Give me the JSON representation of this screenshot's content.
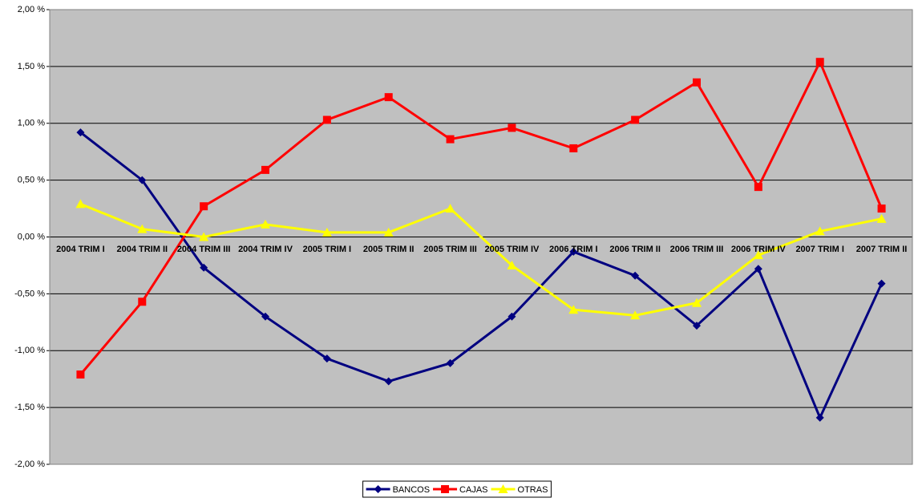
{
  "chart_data": {
    "type": "line",
    "categories": [
      "2004 TRIM I",
      "2004 TRIM II",
      "2004 TRIM III",
      "2004 TRIM IV",
      "2005 TRIM I",
      "2005 TRIM II",
      "2005 TRIM III",
      "2005 TRIM IV",
      "2006 TRIM I",
      "2006 TRIM II",
      "2006 TRIM III",
      "2006 TRIM IV",
      "2007 TRIM I",
      "2007 TRIM II"
    ],
    "series": [
      {
        "name": "BANCOS",
        "color": "#000080",
        "marker": "diamond",
        "values": [
          0.92,
          0.5,
          -0.27,
          -0.7,
          -1.07,
          -1.27,
          -1.11,
          -0.7,
          -0.13,
          -0.34,
          -0.78,
          -0.28,
          -1.59,
          -0.41
        ]
      },
      {
        "name": "CAJAS",
        "color": "#ff0000",
        "marker": "square",
        "values": [
          -1.21,
          -0.57,
          0.27,
          0.59,
          1.03,
          1.23,
          0.86,
          0.96,
          0.78,
          1.03,
          1.36,
          0.44,
          1.54,
          0.25
        ]
      },
      {
        "name": "OTRAS",
        "color": "#ffff00",
        "marker": "triangle",
        "values": [
          0.29,
          0.07,
          0.0,
          0.11,
          0.04,
          0.04,
          0.25,
          -0.25,
          -0.64,
          -0.69,
          -0.58,
          -0.16,
          0.05,
          0.16
        ]
      }
    ],
    "ylim": [
      -2,
      2
    ],
    "yticks": [
      {
        "value": -2,
        "label": "-2,00 %"
      },
      {
        "value": -1.5,
        "label": "-1,50 %"
      },
      {
        "value": -1,
        "label": "-1,00 %"
      },
      {
        "value": -0.5,
        "label": "-0,50 %"
      },
      {
        "value": 0,
        "label": "0,00 %"
      },
      {
        "value": 0.5,
        "label": "0,50 %"
      },
      {
        "value": 1,
        "label": "1,00 %"
      },
      {
        "value": 1.5,
        "label": "1,50 %"
      },
      {
        "value": 2,
        "label": "2,00 %"
      }
    ],
    "grid": true,
    "legend": "bottom"
  }
}
